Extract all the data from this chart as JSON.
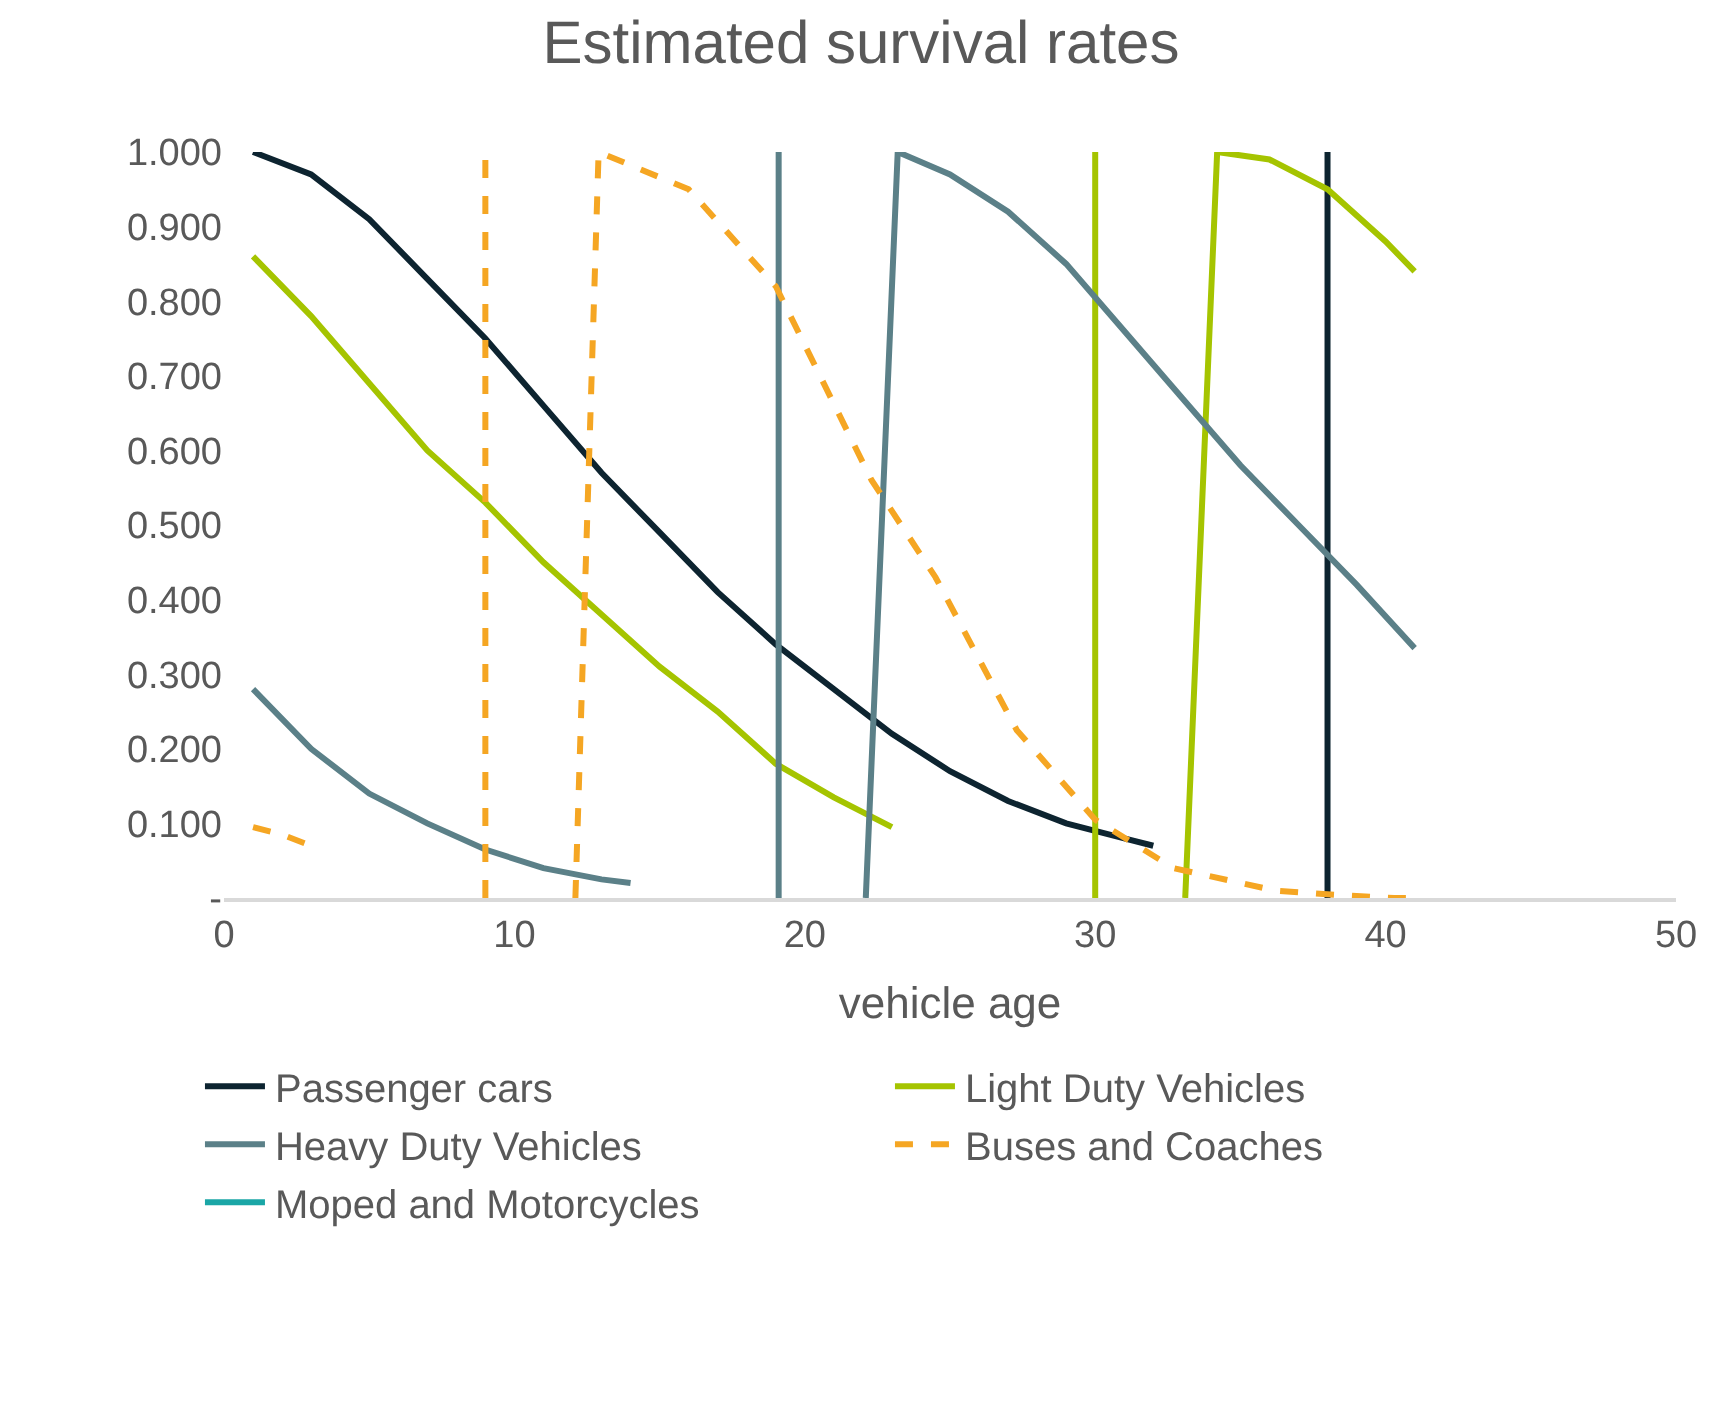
{
  "chart_data": {
    "type": "line",
    "title": "Estimated survival rates",
    "xlabel": "vehicle age",
    "xlim": [
      0,
      50
    ],
    "xticks": [
      0,
      10,
      20,
      30,
      40,
      50
    ],
    "ylim": [
      0,
      1
    ],
    "yticks": [
      {
        "value": 0,
        "label": "-"
      },
      {
        "value": 0.1,
        "label": "0.100"
      },
      {
        "value": 0.2,
        "label": "0.200"
      },
      {
        "value": 0.3,
        "label": "0.300"
      },
      {
        "value": 0.4,
        "label": "0.400"
      },
      {
        "value": 0.5,
        "label": "0.500"
      },
      {
        "value": 0.6,
        "label": "0.600"
      },
      {
        "value": 0.7,
        "label": "0.700"
      },
      {
        "value": 0.8,
        "label": "0.800"
      },
      {
        "value": 0.9,
        "label": "0.900"
      },
      {
        "value": 1,
        "label": "1.000"
      }
    ],
    "grid": false,
    "legend": "bottom",
    "marker": "none",
    "series": [
      {
        "name": "Passenger cars",
        "color": "#0d2430",
        "line_style": "solid",
        "x": [
          1,
          3,
          5,
          7,
          9,
          11,
          13,
          15,
          17,
          19,
          21,
          23,
          25,
          27,
          29,
          31,
          32,
          35,
          38,
          38
        ],
        "values": [
          1.0,
          0.97,
          0.91,
          0.83,
          0.75,
          0.66,
          0.57,
          0.49,
          0.41,
          0.34,
          0.28,
          0.22,
          0.17,
          0.13,
          0.1,
          0.08,
          0.07,
          null,
          0,
          1.0
        ]
      },
      {
        "name": "Light Duty Vehicles",
        "color": "#a5c400",
        "line_style": "solid",
        "x": [
          1,
          3,
          5,
          7,
          9,
          11,
          13,
          15,
          17,
          19,
          21,
          23,
          26,
          30,
          30,
          31,
          33.1,
          34.2,
          36,
          38,
          40,
          41
        ],
        "values": [
          0.86,
          0.78,
          0.69,
          0.6,
          0.53,
          0.45,
          0.38,
          0.31,
          0.25,
          0.18,
          0.135,
          0.095,
          null,
          0,
          1.0,
          null,
          0,
          1.0,
          0.99,
          0.95,
          0.88,
          0.84
        ]
      },
      {
        "name": "Heavy Duty Vehicles",
        "color": "#5b8088",
        "line_style": "solid",
        "x": [
          1,
          3,
          5,
          7,
          9,
          11,
          13,
          14,
          17,
          19.1,
          19.1,
          20,
          22.1,
          23.2,
          25,
          27,
          29,
          31,
          33,
          35,
          37,
          39,
          41
        ],
        "values": [
          0.28,
          0.2,
          0.14,
          0.1,
          0.065,
          0.04,
          0.025,
          0.02,
          null,
          0,
          1.0,
          null,
          0,
          1.0,
          0.97,
          0.92,
          0.85,
          0.76,
          0.67,
          0.58,
          0.5,
          0.42,
          0.335
        ]
      },
      {
        "name": "Buses and Coaches",
        "color": "#f5a623",
        "line_style": "dashed",
        "x": [
          1,
          2,
          3,
          6,
          9,
          9,
          10,
          12.1,
          12.9,
          16,
          19,
          22.3,
          24.5,
          27.3,
          30,
          32.7,
          36.2,
          38,
          40.3,
          41
        ],
        "values": [
          0.095,
          0.085,
          0.07,
          null,
          0,
          1.0,
          null,
          0,
          1.0,
          0.95,
          0.82,
          0.56,
          0.43,
          0.225,
          0.105,
          0.04,
          0.01,
          0.005,
          0,
          0
        ]
      },
      {
        "name": "Moped and Motorcycles",
        "color": "#1aa6a6",
        "line_style": "solid"
      }
    ]
  }
}
